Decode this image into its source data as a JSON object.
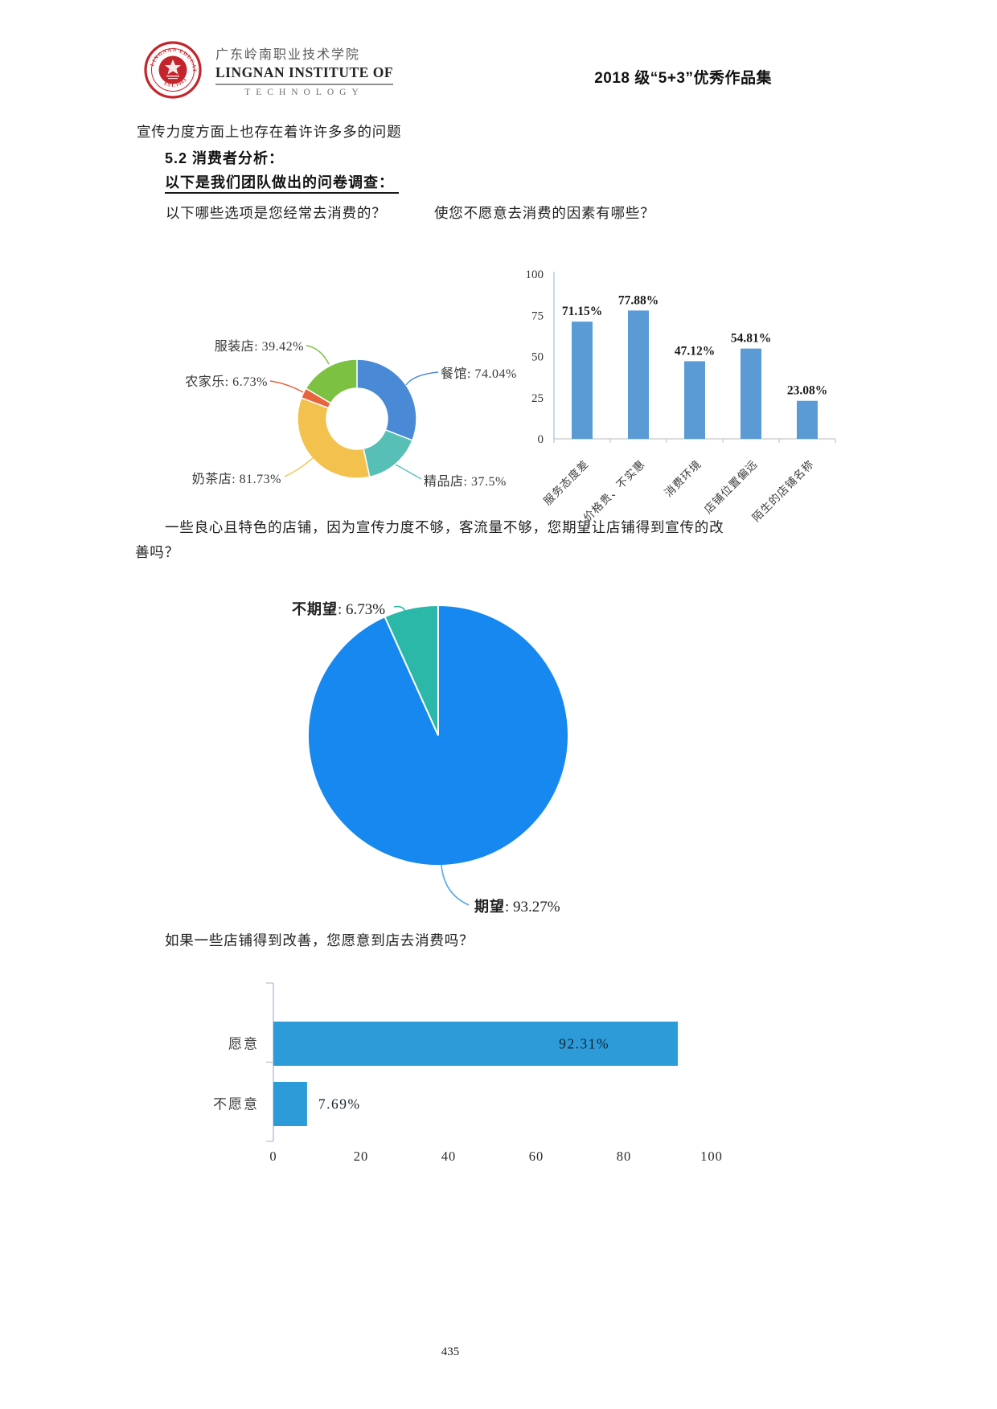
{
  "header": {
    "logo_cn": "广东岭南职业技术学院",
    "logo_en1": "LINGNAN INSTITUTE OF",
    "logo_en2": "TECHNOLOGY",
    "seal_top": "LINGNAN EDUCATION",
    "seal_bottom": "EST.1993",
    "title": "2018 级“5+3”优秀作品集"
  },
  "body": {
    "para1": "宣传力度方面上也存在着许许多多的问题",
    "section_heading": "5.2 消费者分析：",
    "survey_intro": "以下是我们团队做出的问卷调查：",
    "para2_line1": "一些良心且特色的店铺，因为宣传力度不够，客流量不够，您期望让店铺得到宣传的改",
    "para2_line2": "善吗？",
    "page_number": "435"
  },
  "chart_data": [
    {
      "type": "pie",
      "donut": true,
      "question": "以下哪些选项是您经常去消费的？",
      "legend_position": "outside-leader-lines",
      "slices": [
        {
          "label": "餐馆",
          "value": 74.04,
          "display": "餐馆: 74.04%",
          "color": "#4a89d5"
        },
        {
          "label": "精品店",
          "value": 37.5,
          "display": "精品店: 37.5%",
          "color": "#58bfb7"
        },
        {
          "label": "奶茶店",
          "value": 81.73,
          "display": "奶茶店: 81.73%",
          "color": "#f2c14e"
        },
        {
          "label": "农家乐",
          "value": 6.73,
          "display": "农家乐: 6.73%",
          "color": "#e8643f"
        },
        {
          "label": "服装店",
          "value": 39.42,
          "display": "服装店: 39.42%",
          "color": "#7cc142"
        }
      ]
    },
    {
      "type": "bar",
      "question": "使您不愿意去消费的因素有哪些？",
      "categories": [
        "服务态度差",
        "价格贵、不实惠",
        "消费环境",
        "店铺位置偏远",
        "陌生的店铺名称"
      ],
      "values": [
        71.15,
        77.88,
        47.12,
        54.81,
        23.08
      ],
      "value_labels": [
        "71.15%",
        "77.88%",
        "47.12%",
        "54.81%",
        "23.08%"
      ],
      "ylim": [
        0,
        100
      ],
      "yticks": [
        0,
        25,
        50,
        75,
        100
      ],
      "grid": false,
      "bar_color": "#5b9bd5"
    },
    {
      "type": "pie",
      "donut": false,
      "slices": [
        {
          "label": "期望",
          "value": 93.27,
          "display": "期望: 93.27%",
          "color": "#1688f0"
        },
        {
          "label": "不期望",
          "value": 6.73,
          "display": "不期望: 6.73%",
          "color": "#2bb8a8"
        }
      ]
    },
    {
      "type": "bar",
      "orientation": "horizontal",
      "question": "如果一些店铺得到改善，您愿意到店去消费吗？",
      "categories": [
        "愿意",
        "不愿意"
      ],
      "values": [
        92.31,
        7.69
      ],
      "value_labels": [
        "92.31%",
        "7.69%"
      ],
      "xlim": [
        0,
        100
      ],
      "xticks": [
        0,
        20,
        40,
        60,
        80,
        100
      ],
      "grid": false,
      "bar_color": "#2e9bd9"
    }
  ]
}
